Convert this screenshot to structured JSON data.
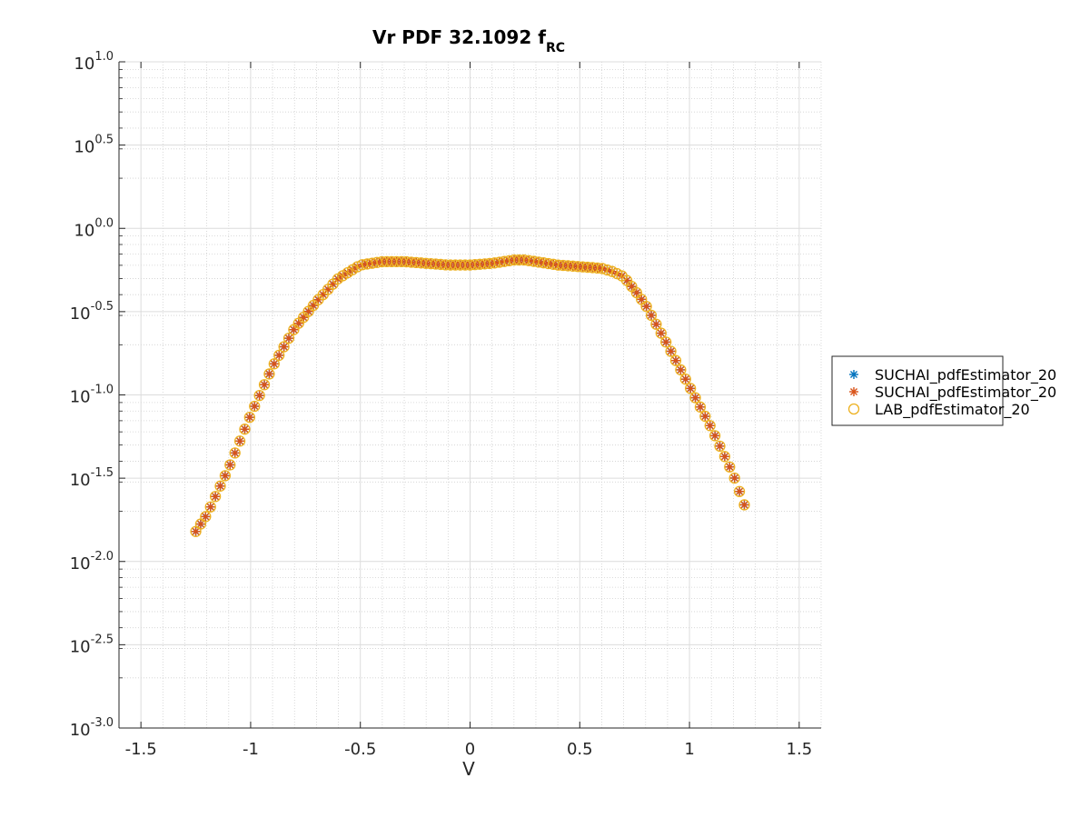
{
  "chart_data": {
    "type": "scatter",
    "title": "Vr PDF 32.1092 f",
    "title_subscript": "RC",
    "xlabel": "V",
    "ylabel": "",
    "xlim": [
      -1.6,
      1.6
    ],
    "ylim_log10": [
      -3.0,
      1.0
    ],
    "yscale": "log",
    "grid": true,
    "minor_grid": true,
    "legend_placement": "outside-right",
    "x_ticks": [
      -1.5,
      -1,
      -0.5,
      0,
      0.5,
      1,
      1.5
    ],
    "x_tick_labels": [
      "-1.5",
      "-1",
      "-0.5",
      "0",
      "0.5",
      "1",
      "1.5"
    ],
    "y_ticks_log10": [
      1.0,
      0.5,
      0.0,
      -0.5,
      -1.0,
      -1.5,
      -2.0,
      -2.5,
      -3.0
    ],
    "y_tick_labels": [
      {
        "base": "10",
        "exp": "1.0"
      },
      {
        "base": "10",
        "exp": "0.5"
      },
      {
        "base": "10",
        "exp": "0.0"
      },
      {
        "base": "10",
        "exp": "-0.5"
      },
      {
        "base": "10",
        "exp": "-1.0"
      },
      {
        "base": "10",
        "exp": "-1.5"
      },
      {
        "base": "10",
        "exp": "-2.0"
      },
      {
        "base": "10",
        "exp": "-2.5"
      },
      {
        "base": "10",
        "exp": "-3.0"
      }
    ],
    "profile_log10": {
      "x": [
        -1.25,
        -1.2,
        -1.1,
        -1.0,
        -0.9,
        -0.8,
        -0.7,
        -0.6,
        -0.5,
        -0.4,
        -0.3,
        -0.2,
        -0.1,
        0.0,
        0.1,
        0.2,
        0.25,
        0.3,
        0.4,
        0.5,
        0.6,
        0.65,
        0.7,
        0.75,
        0.8,
        0.9,
        1.0,
        1.1,
        1.2,
        1.25
      ],
      "y": [
        -1.82,
        -1.72,
        -1.44,
        -1.12,
        -0.83,
        -0.6,
        -0.44,
        -0.3,
        -0.22,
        -0.2,
        -0.2,
        -0.21,
        -0.22,
        -0.22,
        -0.21,
        -0.19,
        -0.19,
        -0.2,
        -0.22,
        -0.23,
        -0.24,
        -0.26,
        -0.29,
        -0.37,
        -0.46,
        -0.7,
        -0.95,
        -1.2,
        -1.48,
        -1.66
      ]
    },
    "x_sample": {
      "start": -1.25,
      "end": 1.25,
      "count": 113
    },
    "series": [
      {
        "name": "SUCHAI_pdfEstimator_20",
        "marker": "asterisk",
        "color": "#0072bd"
      },
      {
        "name": "SUCHAI_pdfEstimator_20",
        "marker": "asterisk",
        "color": "#d95319"
      },
      {
        "name": "LAB_pdfEstimator_20",
        "marker": "circle",
        "color": "#edb120"
      }
    ]
  }
}
